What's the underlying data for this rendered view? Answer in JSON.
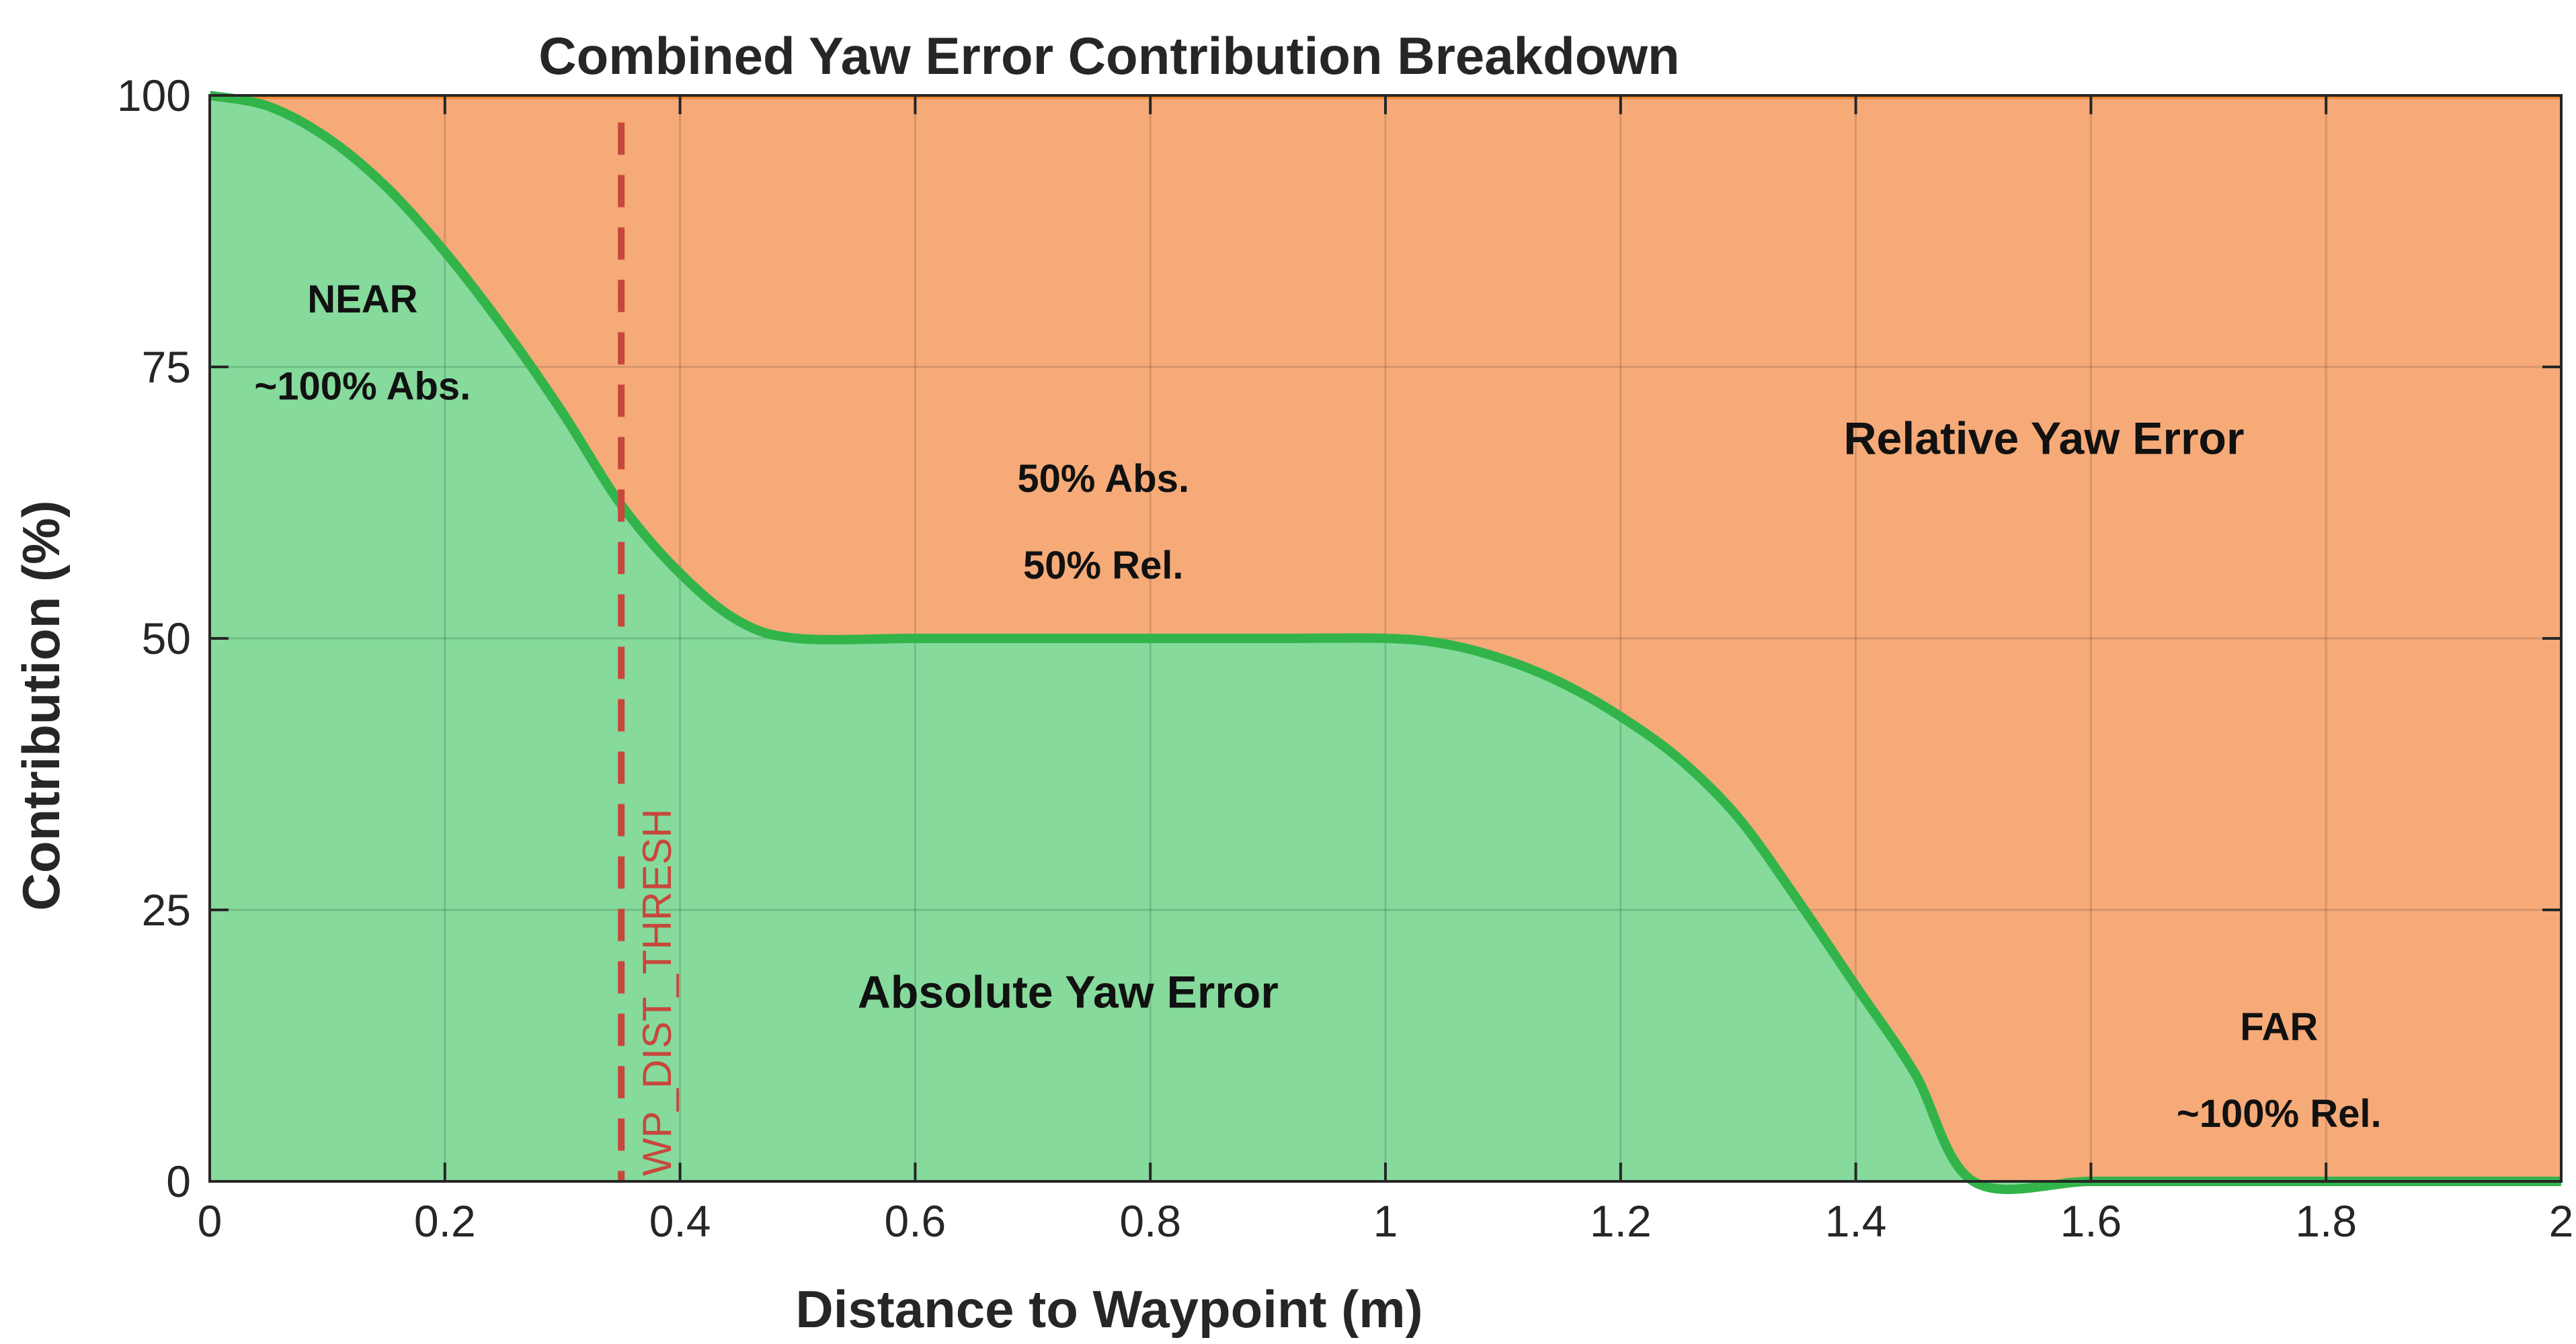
{
  "chart_data": {
    "type": "area",
    "title": "Combined Yaw Error Contribution Breakdown",
    "xlabel": "Distance to Waypoint (m)",
    "ylabel": "Contribution (%)",
    "xlim": [
      0,
      2
    ],
    "ylim": [
      0,
      100
    ],
    "xticks": [
      "0",
      "0.2",
      "0.4",
      "0.6",
      "0.8",
      "1",
      "1.2",
      "1.4",
      "1.6",
      "1.8",
      "2"
    ],
    "yticks": [
      "0",
      "25",
      "50",
      "75",
      "100"
    ],
    "grid": true,
    "stacked": true,
    "x": [
      0,
      0.05,
      0.1,
      0.15,
      0.2,
      0.25,
      0.3,
      0.35,
      0.4,
      0.45,
      0.5,
      0.6,
      0.7,
      0.8,
      0.9,
      1.0,
      1.05,
      1.1,
      1.15,
      1.2,
      1.25,
      1.3,
      1.35,
      1.4,
      1.45,
      1.5,
      1.6,
      1.7,
      1.8,
      1.9,
      2.0
    ],
    "series": [
      {
        "name": "Absolute Yaw Error",
        "color": "#85da9c",
        "line_color": "#32b44a",
        "values": [
          100,
          99.0,
          96.1,
          91.6,
          85.6,
          78.6,
          70.8,
          62.3,
          56.0,
          51.6,
          50,
          50,
          50,
          50,
          50,
          50,
          49.5,
          48.1,
          45.9,
          42.8,
          38.9,
          33.5,
          26.0,
          18.0,
          10.0,
          0,
          0,
          0,
          0,
          0,
          0
        ]
      },
      {
        "name": "Relative Yaw Error",
        "color": "#f5aa78",
        "line_color": "#f08a33",
        "values": [
          0,
          1.0,
          3.9,
          8.4,
          14.4,
          21.4,
          29.2,
          37.7,
          44.0,
          48.4,
          50,
          50,
          50,
          50,
          50,
          50,
          50.5,
          51.9,
          54.1,
          57.2,
          61.1,
          66.5,
          74.0,
          82.0,
          90.0,
          100,
          100,
          100,
          100,
          100,
          100
        ]
      }
    ],
    "threshold": {
      "label": "WP_DIST_THRESH",
      "x": 0.35,
      "color": "#c8473c"
    },
    "annotations": [
      {
        "text": "NEAR",
        "x": 0.13,
        "y": 80,
        "size": 58
      },
      {
        "text": "~100% Abs.",
        "x": 0.13,
        "y": 72,
        "size": 58
      },
      {
        "text": "50% Abs.",
        "x": 0.76,
        "y": 63.5,
        "size": 58
      },
      {
        "text": "50% Rel.",
        "x": 0.76,
        "y": 55.5,
        "size": 58
      },
      {
        "text": "Relative Yaw Error",
        "x": 1.56,
        "y": 67,
        "size": 68
      },
      {
        "text": "Absolute Yaw Error",
        "x": 0.73,
        "y": 16,
        "size": 68
      },
      {
        "text": "FAR",
        "x": 1.76,
        "y": 13,
        "size": 58
      },
      {
        "text": "~100% Rel.",
        "x": 1.76,
        "y": 5,
        "size": 58
      }
    ]
  }
}
